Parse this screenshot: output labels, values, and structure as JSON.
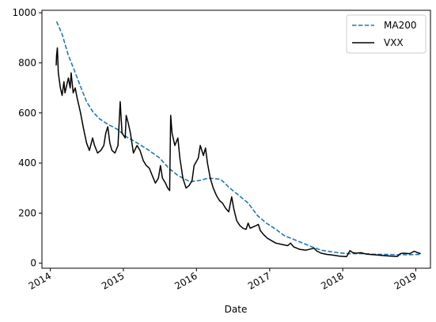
{
  "chart_data": {
    "type": "line",
    "xlabel": "Date",
    "ylabel": "",
    "xlim": [
      "2013-11-20",
      "2019-03-15"
    ],
    "ylim": [
      -20,
      1010
    ],
    "grid": false,
    "legend_position": "top-right",
    "x_ticks": [
      {
        "date": "2014-01-01",
        "label": "2014"
      },
      {
        "date": "2015-01-01",
        "label": "2015"
      },
      {
        "date": "2016-01-01",
        "label": "2016"
      },
      {
        "date": "2017-01-01",
        "label": "2017"
      },
      {
        "date": "2018-01-01",
        "label": "2018"
      },
      {
        "date": "2019-01-01",
        "label": "2019"
      }
    ],
    "y_ticks": [
      0,
      200,
      400,
      600,
      800,
      1000
    ],
    "series": [
      {
        "name": "MA200",
        "color": "#1f77b4",
        "style": "dashed",
        "points": [
          [
            "2014-02-01",
            965
          ],
          [
            "2014-03-01",
            915
          ],
          [
            "2014-04-01",
            830
          ],
          [
            "2014-05-01",
            770
          ],
          [
            "2014-06-01",
            705
          ],
          [
            "2014-07-01",
            645
          ],
          [
            "2014-08-01",
            605
          ],
          [
            "2014-09-01",
            578
          ],
          [
            "2014-10-15",
            555
          ],
          [
            "2014-12-01",
            535
          ],
          [
            "2015-01-15",
            505
          ],
          [
            "2015-03-01",
            485
          ],
          [
            "2015-05-01",
            455
          ],
          [
            "2015-07-01",
            420
          ],
          [
            "2015-08-15",
            380
          ],
          [
            "2015-10-01",
            350
          ],
          [
            "2015-12-01",
            325
          ],
          [
            "2016-01-15",
            330
          ],
          [
            "2016-03-01",
            340
          ],
          [
            "2016-05-01",
            335
          ],
          [
            "2016-06-15",
            300
          ],
          [
            "2016-08-01",
            270
          ],
          [
            "2016-09-15",
            240
          ],
          [
            "2016-11-01",
            190
          ],
          [
            "2016-12-15",
            160
          ],
          [
            "2017-02-01",
            135
          ],
          [
            "2017-03-15",
            110
          ],
          [
            "2017-05-01",
            95
          ],
          [
            "2017-06-15",
            80
          ],
          [
            "2017-08-01",
            65
          ],
          [
            "2017-09-15",
            52
          ],
          [
            "2017-11-01",
            46
          ],
          [
            "2017-12-15",
            41
          ],
          [
            "2018-02-01",
            38
          ],
          [
            "2018-04-01",
            38
          ],
          [
            "2018-06-01",
            36
          ],
          [
            "2018-08-01",
            35
          ],
          [
            "2018-10-01",
            34
          ],
          [
            "2018-12-01",
            34
          ],
          [
            "2019-01-20",
            35
          ]
        ]
      },
      {
        "name": "VXX",
        "color": "#000000",
        "style": "solid",
        "points": [
          [
            "2014-01-30",
            790
          ],
          [
            "2014-02-01",
            830
          ],
          [
            "2014-02-05",
            860
          ],
          [
            "2014-02-10",
            760
          ],
          [
            "2014-02-20",
            700
          ],
          [
            "2014-03-01",
            670
          ],
          [
            "2014-03-10",
            725
          ],
          [
            "2014-03-15",
            680
          ],
          [
            "2014-04-01",
            740
          ],
          [
            "2014-04-10",
            700
          ],
          [
            "2014-04-15",
            760
          ],
          [
            "2014-04-25",
            680
          ],
          [
            "2014-05-05",
            700
          ],
          [
            "2014-05-15",
            660
          ],
          [
            "2014-06-01",
            600
          ],
          [
            "2014-06-15",
            540
          ],
          [
            "2014-07-01",
            480
          ],
          [
            "2014-07-15",
            450
          ],
          [
            "2014-07-31",
            500
          ],
          [
            "2014-08-10",
            470
          ],
          [
            "2014-08-25",
            440
          ],
          [
            "2014-09-10",
            450
          ],
          [
            "2014-09-25",
            470
          ],
          [
            "2014-10-05",
            520
          ],
          [
            "2014-10-15",
            545
          ],
          [
            "2014-10-25",
            480
          ],
          [
            "2014-11-05",
            450
          ],
          [
            "2014-11-20",
            440
          ],
          [
            "2014-12-05",
            470
          ],
          [
            "2014-12-16",
            645
          ],
          [
            "2014-12-25",
            520
          ],
          [
            "2015-01-10",
            500
          ],
          [
            "2015-01-15",
            590
          ],
          [
            "2015-01-25",
            560
          ],
          [
            "2015-02-05",
            520
          ],
          [
            "2015-02-20",
            440
          ],
          [
            "2015-03-10",
            470
          ],
          [
            "2015-03-25",
            450
          ],
          [
            "2015-04-10",
            410
          ],
          [
            "2015-04-25",
            390
          ],
          [
            "2015-05-10",
            380
          ],
          [
            "2015-05-25",
            350
          ],
          [
            "2015-06-10",
            320
          ],
          [
            "2015-06-25",
            340
          ],
          [
            "2015-07-05",
            390
          ],
          [
            "2015-07-15",
            340
          ],
          [
            "2015-07-30",
            320
          ],
          [
            "2015-08-10",
            300
          ],
          [
            "2015-08-20",
            290
          ],
          [
            "2015-08-25",
            590
          ],
          [
            "2015-09-01",
            520
          ],
          [
            "2015-09-15",
            470
          ],
          [
            "2015-09-30",
            500
          ],
          [
            "2015-10-10",
            420
          ],
          [
            "2015-10-25",
            340
          ],
          [
            "2015-11-10",
            300
          ],
          [
            "2015-11-25",
            310
          ],
          [
            "2015-12-10",
            330
          ],
          [
            "2015-12-20",
            390
          ],
          [
            "2016-01-10",
            420
          ],
          [
            "2016-01-20",
            470
          ],
          [
            "2016-02-05",
            430
          ],
          [
            "2016-02-15",
            460
          ],
          [
            "2016-02-25",
            400
          ],
          [
            "2016-03-10",
            340
          ],
          [
            "2016-03-25",
            300
          ],
          [
            "2016-04-10",
            270
          ],
          [
            "2016-04-25",
            250
          ],
          [
            "2016-05-10",
            240
          ],
          [
            "2016-05-25",
            220
          ],
          [
            "2016-06-10",
            205
          ],
          [
            "2016-06-25",
            265
          ],
          [
            "2016-07-05",
            220
          ],
          [
            "2016-07-20",
            170
          ],
          [
            "2016-08-05",
            150
          ],
          [
            "2016-08-20",
            140
          ],
          [
            "2016-09-05",
            135
          ],
          [
            "2016-09-15",
            160
          ],
          [
            "2016-09-25",
            140
          ],
          [
            "2016-10-10",
            145
          ],
          [
            "2016-10-25",
            150
          ],
          [
            "2016-11-05",
            155
          ],
          [
            "2016-11-15",
            130
          ],
          [
            "2016-12-01",
            115
          ],
          [
            "2016-12-20",
            100
          ],
          [
            "2017-01-10",
            90
          ],
          [
            "2017-02-01",
            80
          ],
          [
            "2017-03-01",
            75
          ],
          [
            "2017-04-01",
            70
          ],
          [
            "2017-04-15",
            80
          ],
          [
            "2017-05-01",
            65
          ],
          [
            "2017-06-01",
            55
          ],
          [
            "2017-07-01",
            52
          ],
          [
            "2017-08-10",
            60
          ],
          [
            "2017-08-25",
            48
          ],
          [
            "2017-09-15",
            40
          ],
          [
            "2017-10-15",
            35
          ],
          [
            "2017-11-15",
            32
          ],
          [
            "2017-12-15",
            28
          ],
          [
            "2018-01-20",
            26
          ],
          [
            "2018-02-06",
            50
          ],
          [
            "2018-02-20",
            42
          ],
          [
            "2018-03-10",
            40
          ],
          [
            "2018-04-01",
            42
          ],
          [
            "2018-05-01",
            36
          ],
          [
            "2018-06-01",
            34
          ],
          [
            "2018-07-01",
            32
          ],
          [
            "2018-08-01",
            30
          ],
          [
            "2018-09-01",
            28
          ],
          [
            "2018-10-01",
            27
          ],
          [
            "2018-10-15",
            38
          ],
          [
            "2018-11-01",
            40
          ],
          [
            "2018-12-01",
            38
          ],
          [
            "2018-12-24",
            48
          ],
          [
            "2019-01-10",
            42
          ],
          [
            "2019-01-25",
            38
          ]
        ]
      }
    ]
  }
}
